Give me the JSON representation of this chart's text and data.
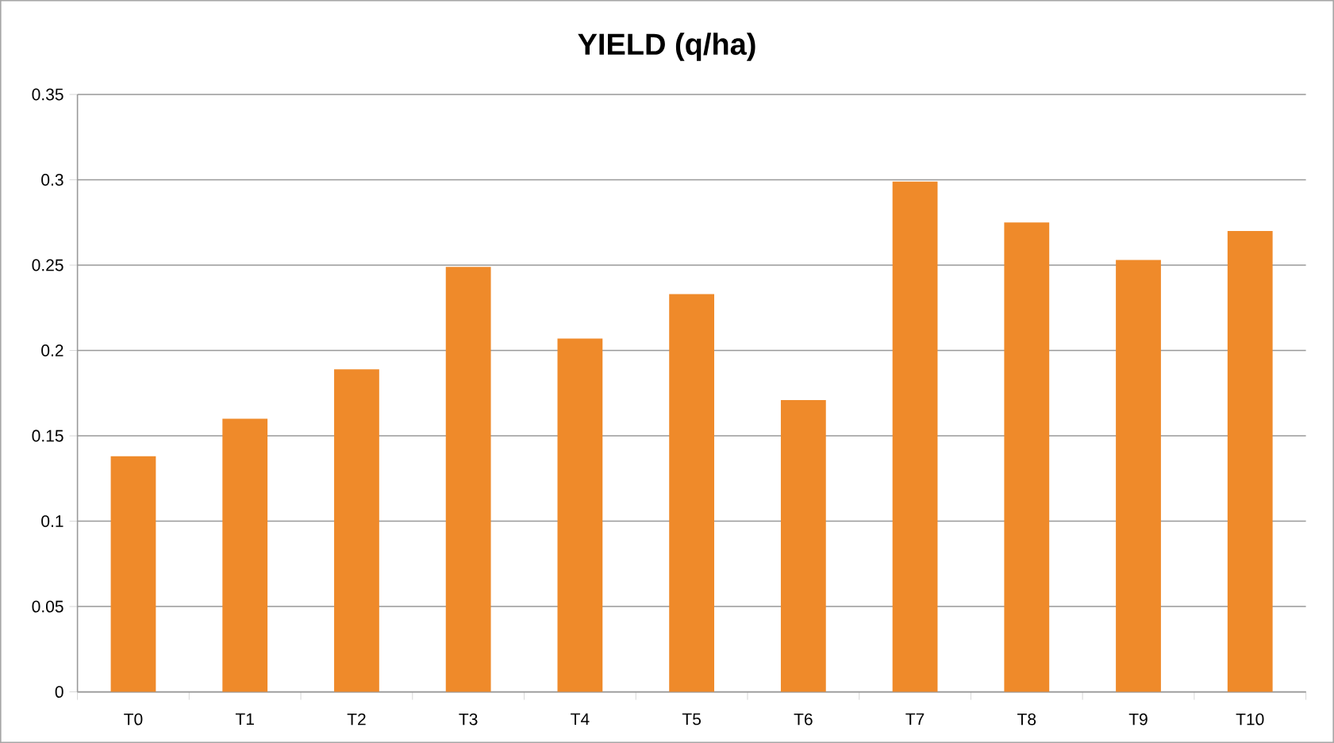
{
  "chart_data": {
    "type": "bar",
    "title": "YIELD (q/ha)",
    "categories": [
      "T0",
      "T1",
      "T2",
      "T3",
      "T4",
      "T5",
      "T6",
      "T7",
      "T8",
      "T9",
      "T10"
    ],
    "values": [
      0.138,
      0.16,
      0.189,
      0.249,
      0.207,
      0.233,
      0.171,
      0.299,
      0.275,
      0.253,
      0.27
    ],
    "color": "#ef8a2a",
    "ylim": [
      0,
      0.35
    ],
    "yticks": [
      0,
      0.05,
      0.1,
      0.15,
      0.2,
      0.25,
      0.3,
      0.35
    ],
    "grid": "y"
  }
}
